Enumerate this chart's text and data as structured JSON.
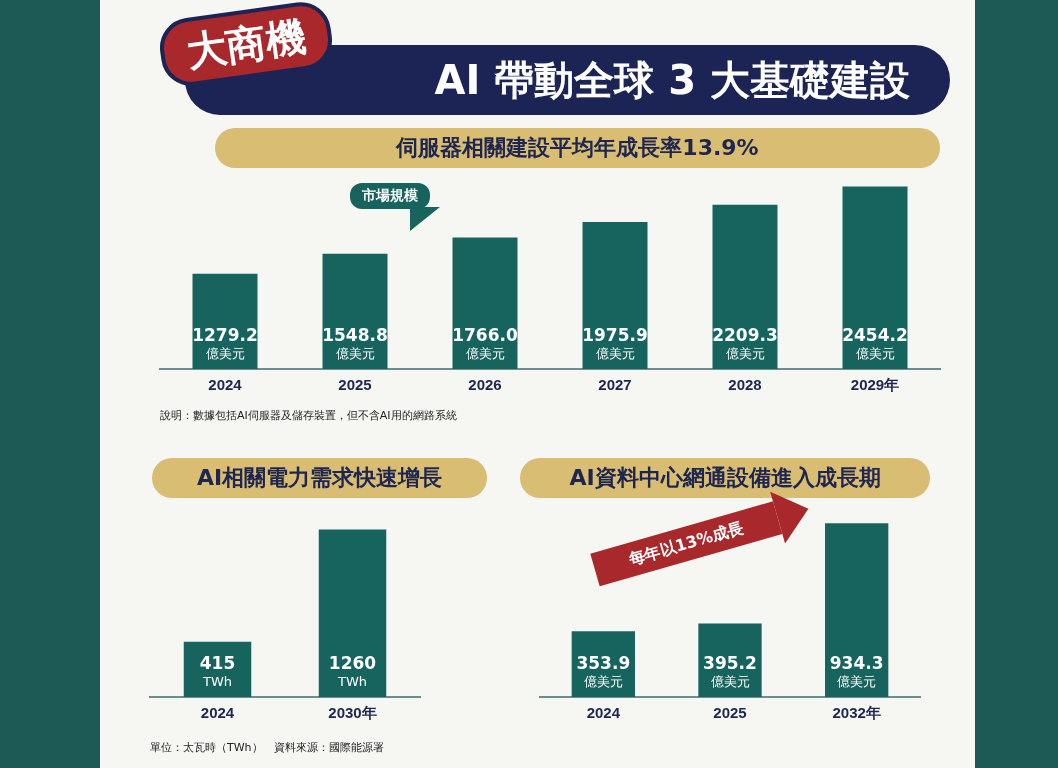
{
  "chart_data": [
    {
      "type": "other",
      "title": "大商機",
      "subtitle": "AI 帶動全球 3 大基礎建設"
    },
    {
      "type": "bar",
      "title": "伺服器相關建設平均年成長率13.9%",
      "categories": [
        "2024",
        "2025",
        "2026",
        "2027",
        "2028",
        "2029年"
      ],
      "values": [
        1279.2,
        1548.8,
        1766.0,
        1975.9,
        2209.3,
        2454.2
      ],
      "value_labels": [
        "1279.2 億美元",
        "1548.8 億美元",
        "1766.0 億美元",
        "1975.9 億美元",
        "2209.3 億美元",
        "2454.2 億美元"
      ],
      "color": "#17645f",
      "tick_labels": "x",
      "grid": false,
      "legend": false,
      "annotations": [
        "市場規模",
        "說明：數據包括AI伺服器及儲存裝置，但不含AI用的網路系統"
      ]
    },
    {
      "type": "bar",
      "title": "AI相關電力需求快速增長",
      "categories": [
        "2024",
        "2030年"
      ],
      "values": [
        415,
        1260
      ],
      "value_labels": [
        "415 TWh",
        "1260 TWh"
      ],
      "color": "#17645f",
      "tick_labels": "x",
      "grid": false,
      "legend": false,
      "annotations": [
        "單位：太瓦時（TWh）　資料來源：國際能源署"
      ]
    },
    {
      "type": "bar",
      "title": "AI資料中心網通設備進入成長期",
      "categories": [
        "2024",
        "2025",
        "2032年"
      ],
      "values": [
        353.9,
        395.2,
        934.3
      ],
      "value_labels": [
        "353.9 億美元",
        "395.2 億美元",
        "934.3 億美元"
      ],
      "color": "#17645f",
      "tick_labels": "x",
      "grid": false,
      "legend": false,
      "annotations": [
        "每年以13%成長"
      ]
    }
  ]
}
